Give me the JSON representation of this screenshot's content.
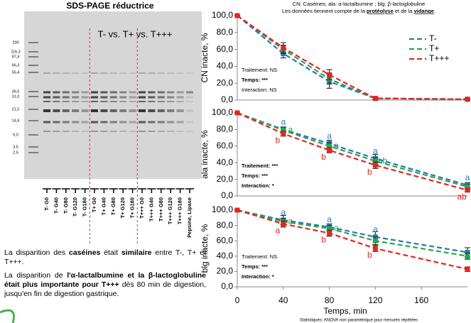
{
  "gel": {
    "title": "SDS-PAGE réductrice",
    "annotation": "T- vs. T+ vs. T+++",
    "mw_labels": [
      "200",
      "116,3",
      "97,4",
      "66,3",
      "55,4",
      "36,5",
      "31,0",
      "21,5",
      "14,4",
      "6,0",
      "3,5",
      "2,5"
    ],
    "lane_labels": [
      "T- G0",
      "T- G40",
      "T- G80",
      "T- G120",
      "T- G180",
      "T+ G0",
      "T+ G40",
      "T+ G80",
      "T+ G120",
      "T+ G180",
      "T+++ G0",
      "T+++ G40",
      "T+++ G80",
      "T+++ G120",
      "T+++ G180",
      "Pepsine, Lipase"
    ]
  },
  "text": {
    "p1": [
      "La disparition des ",
      "caséines",
      " était ",
      "similaire",
      " entre T-, T+ et T+++."
    ],
    "p2": [
      "La disparition de ",
      "l'α-lactalbumine et la β-lactoglobuline était plus importante pour T+++",
      " dès 80 min de digestion, jusqu'en fin de digestion gastrique."
    ]
  },
  "header": {
    "line1": "CN: Caséines; ala: α-lactalbumine ; blg: β-lactoglobuline",
    "line2": [
      "Les données tiennent compte de la ",
      "protéolyse",
      " et de la ",
      "vidange",
      "."
    ]
  },
  "footnote": "Statistiques: ANOVA non paramétrique pour mesures répétées",
  "chart_data": [
    {
      "type": "line",
      "y_label": "CN inacte, %",
      "legend": "upper right",
      "x": [
        0,
        40,
        80,
        120,
        200
      ],
      "xlim": [
        0,
        200
      ],
      "ylim": [
        0,
        100
      ],
      "yticks": [
        {
          "value": 0,
          "label": "0,0"
        },
        {
          "value": 20,
          "label": "20,0"
        },
        {
          "value": 40,
          "label": "40,0"
        },
        {
          "value": 60,
          "label": "60,0"
        },
        {
          "value": 80,
          "label": "80,0"
        },
        {
          "value": 100,
          "label": "100,0"
        }
      ],
      "annotations": [
        {
          "text": "Traitement: NS",
          "bold": false
        },
        {
          "text": "Temps: ***",
          "bold": true
        },
        {
          "text": "Interaction: NS",
          "bold": false
        }
      ],
      "series": [
        {
          "name": "T-",
          "color": "#2e75b6",
          "values": [
            100,
            55,
            22,
            2,
            1
          ],
          "errors": [
            0,
            5,
            8,
            1,
            1
          ]
        },
        {
          "name": "T+",
          "color": "#21a84f",
          "values": [
            100,
            60,
            25,
            2,
            1
          ],
          "errors": [
            0,
            5,
            6,
            1,
            1
          ]
        },
        {
          "name": "T+++",
          "color": "#e8231f",
          "values": [
            100,
            62,
            30,
            2,
            1
          ],
          "errors": [
            0,
            6,
            6,
            1,
            1
          ]
        }
      ]
    },
    {
      "type": "line",
      "y_label": "ala inacte, %",
      "x": [
        0,
        40,
        80,
        120,
        200
      ],
      "xlim": [
        0,
        200
      ],
      "ylim": [
        0,
        100
      ],
      "yticks": [
        {
          "value": 0,
          "label": "0,0"
        },
        {
          "value": 20,
          "label": "20,0"
        },
        {
          "value": 40,
          "label": "40,0"
        },
        {
          "value": 60,
          "label": "60,0"
        },
        {
          "value": 80,
          "label": "80,0"
        },
        {
          "value": 100,
          "label": "100,0"
        }
      ],
      "annotations": [
        {
          "text": "Traitement: ***",
          "bold": true
        },
        {
          "text": "Temps: ***",
          "bold": true
        },
        {
          "text": "Interaction: *",
          "bold": true
        }
      ],
      "series": [
        {
          "name": "T-",
          "color": "#2e75b6",
          "values": [
            100,
            80,
            63,
            45,
            13
          ],
          "errors": [
            0,
            3,
            4,
            5,
            3
          ],
          "letters": [
            null,
            "a",
            "a",
            "a",
            "a"
          ]
        },
        {
          "name": "T+",
          "color": "#21a84f",
          "values": [
            100,
            79,
            60,
            42,
            11
          ],
          "errors": [
            0,
            3,
            4,
            4,
            3
          ],
          "letters": [
            null,
            "a",
            "a",
            "ab",
            null
          ]
        },
        {
          "name": "T+++",
          "color": "#e8231f",
          "values": [
            100,
            75,
            55,
            37,
            7
          ],
          "errors": [
            0,
            3,
            3,
            4,
            2
          ],
          "letters": [
            null,
            "b",
            "b",
            "b",
            "ab"
          ]
        }
      ]
    },
    {
      "type": "line",
      "y_label": "blg inacte, %",
      "x": [
        0,
        40,
        80,
        120,
        200
      ],
      "xlim": [
        0,
        200
      ],
      "xticks": [
        0,
        40,
        80,
        120,
        160
      ],
      "x_label": "Temps, min",
      "ylim": [
        0,
        100
      ],
      "yticks": [
        {
          "value": 0,
          "label": "0,0"
        },
        {
          "value": 20,
          "label": "20,0"
        },
        {
          "value": 40,
          "label": "40,0"
        },
        {
          "value": 60,
          "label": "60,0"
        },
        {
          "value": 80,
          "label": "80,0"
        },
        {
          "value": 100,
          "label": "100,0"
        }
      ],
      "annotations": [
        {
          "text": "Traitement: NS",
          "bold": false
        },
        {
          "text": "Temps: ***",
          "bold": true
        },
        {
          "text": "Interaction: *",
          "bold": true
        }
      ],
      "series": [
        {
          "name": "T-",
          "color": "#2e75b6",
          "values": [
            100,
            87,
            78,
            65,
            45
          ],
          "errors": [
            0,
            6,
            4,
            7,
            6
          ],
          "letters": [
            null,
            "a",
            "a",
            "a",
            null
          ]
        },
        {
          "name": "T+",
          "color": "#21a84f",
          "values": [
            100,
            85,
            76,
            60,
            40
          ],
          "errors": [
            0,
            4,
            4,
            5,
            4
          ],
          "letters": [
            null,
            "a",
            "a",
            null,
            null
          ]
        },
        {
          "name": "T+++",
          "color": "#e8231f",
          "values": [
            100,
            82,
            70,
            50,
            23
          ],
          "errors": [
            0,
            4,
            4,
            4,
            3
          ],
          "letters": [
            null,
            "a",
            "b",
            "b",
            null
          ]
        }
      ]
    }
  ]
}
